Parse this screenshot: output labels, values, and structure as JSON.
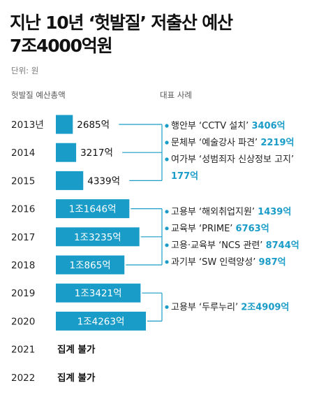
{
  "title": {
    "line1": "지난 10년 ‘헛발질’ 저출산 예산",
    "line2": "7조4000억원"
  },
  "unit_label": "단위: 원",
  "left_header": "헛발질 예산총액",
  "right_header": "대표 사례",
  "colors": {
    "bar": "#1a9cc8",
    "connector": "#1a9cc8",
    "accent": "#1a9cc8"
  },
  "chart_data": {
    "type": "bar",
    "orientation": "horizontal",
    "categories": [
      "2013년",
      "2014",
      "2015",
      "2016",
      "2017",
      "2018",
      "2019",
      "2020",
      "2021",
      "2022"
    ],
    "values": [
      2685,
      3217,
      4339,
      11646,
      13235,
      10865,
      13421,
      14263,
      null,
      null
    ],
    "value_labels": [
      "2685억",
      "3217억",
      "4339억",
      "1조1646억",
      "1조3235억",
      "1조865억",
      "1조3421억",
      "1조4263억",
      "",
      ""
    ],
    "notes": [
      "",
      "",
      "",
      "",
      "",
      "",
      "",
      "",
      "집계 불가",
      "집계 불가"
    ],
    "ylabel": "헛발질 예산총액",
    "unit": "억원",
    "grid": false,
    "legend": "none",
    "annotations": [
      {
        "years": [
          "2013년",
          "2014",
          "2015"
        ],
        "items": [
          {
            "text": "행안부 ‘CCTV 설치’",
            "amount": "3406억"
          },
          {
            "text": "문체부 ‘예술강사 파견’",
            "amount": "2219억"
          },
          {
            "text": "여가부 ‘성범죄자 신상정보 고지’",
            "amount": "177억"
          }
        ]
      },
      {
        "years": [
          "2016",
          "2017",
          "2018"
        ],
        "items": [
          {
            "text": "고용부 ‘해외취업지원’",
            "amount": "1439억"
          },
          {
            "text": "교육부 ‘PRIME’",
            "amount": "6763억"
          },
          {
            "text": "고용·교육부 ‘NCS 관련’",
            "amount": "8744억"
          },
          {
            "text": "과기부 ‘SW 인력양성’",
            "amount": "987억"
          }
        ]
      },
      {
        "years": [
          "2019",
          "2020"
        ],
        "items": [
          {
            "text": "고용부 ‘두루누리’",
            "amount": "2조4909억"
          }
        ]
      }
    ]
  }
}
